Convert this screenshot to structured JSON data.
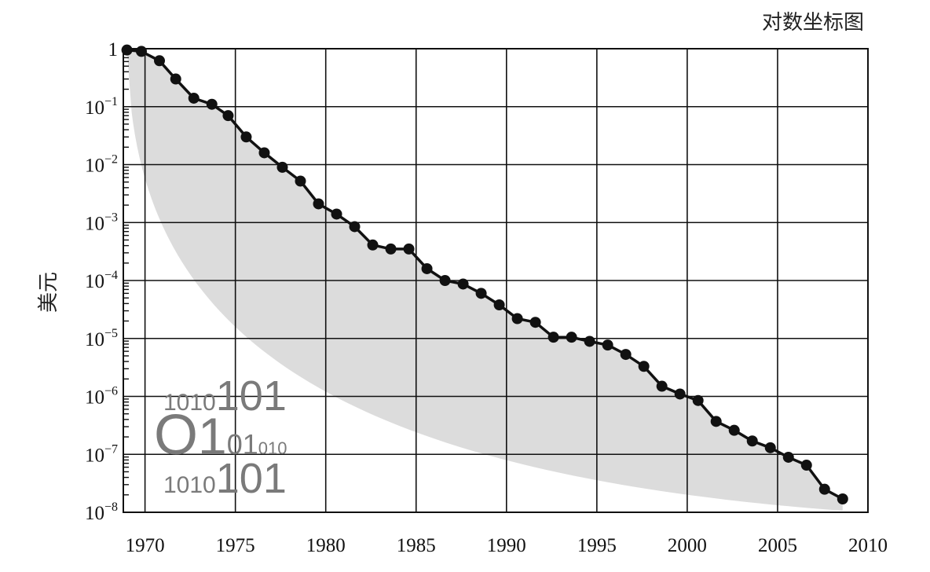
{
  "chart_data": {
    "type": "line",
    "title": "对数坐标图",
    "xlabel": "",
    "ylabel": "美元",
    "y_scale": "log",
    "xlim": [
      1968.8,
      2010
    ],
    "ylim": [
      1e-08,
      1
    ],
    "grid": true,
    "x_ticks": [
      1970,
      1975,
      1980,
      1985,
      1990,
      1995,
      2000,
      2005,
      2010
    ],
    "x_tick_labels": [
      "1970",
      "1975",
      "1980",
      "1985",
      "1990",
      "1995",
      "2000",
      "2005",
      "2010"
    ],
    "y_ticks": [
      {
        "base": "1",
        "exp": ""
      },
      {
        "base": "10",
        "exp": "−1"
      },
      {
        "base": "10",
        "exp": "−2"
      },
      {
        "base": "10",
        "exp": "−3"
      },
      {
        "base": "10",
        "exp": "−4"
      },
      {
        "base": "10",
        "exp": "−5"
      },
      {
        "base": "10",
        "exp": "−6"
      },
      {
        "base": "10",
        "exp": "−7"
      },
      {
        "base": "10",
        "exp": "−8"
      }
    ],
    "series": [
      {
        "x": [
          1969,
          1969.8,
          1970.8,
          1971.7,
          1972.7,
          1973.7,
          1974.6,
          1975.6,
          1976.6,
          1977.6,
          1978.6,
          1979.6,
          1980.6,
          1981.6,
          1982.6,
          1983.6,
          1984.6,
          1985.6,
          1986.6,
          1987.6,
          1988.6,
          1989.6,
          1990.6,
          1991.6,
          1992.6,
          1993.6,
          1994.6,
          1995.6,
          1996.6,
          1997.6,
          1998.6,
          1999.6,
          2000.6,
          2001.6,
          2002.6,
          2003.6,
          2004.6,
          2005.6,
          2006.6,
          2007.6,
          2008.6
        ],
        "values": [
          0.95,
          0.9,
          0.62,
          0.3,
          0.14,
          0.11,
          0.07,
          0.03,
          0.016,
          0.009,
          0.0052,
          0.0021,
          0.0014,
          0.00085,
          0.00041,
          0.00035,
          0.00035,
          0.00016,
          0.0001,
          8.7e-05,
          6e-05,
          3.8e-05,
          2.2e-05,
          1.9e-05,
          1.05e-05,
          1.05e-05,
          8.9e-06,
          7.7e-06,
          5.3e-06,
          3.3e-06,
          1.5e-06,
          1.1e-06,
          8.5e-07,
          3.7e-07,
          2.6e-07,
          1.7e-07,
          1.3e-07,
          8.9e-08,
          6.5e-08,
          2.5e-08,
          1.7e-08
        ]
      }
    ],
    "decoration": {
      "bits_lines": [
        [
          {
            "t": "1010",
            "s": 30
          },
          {
            "t": "101",
            "s": 54
          }
        ],
        [
          {
            "t": "O",
            "s": 72
          },
          {
            "t": "1",
            "s": 66
          },
          {
            "t": "01",
            "s": 36
          },
          {
            "t": "010",
            "s": 22
          }
        ],
        [
          {
            "t": "1010",
            "s": 30
          },
          {
            "t": "101",
            "s": 54
          }
        ]
      ]
    }
  }
}
